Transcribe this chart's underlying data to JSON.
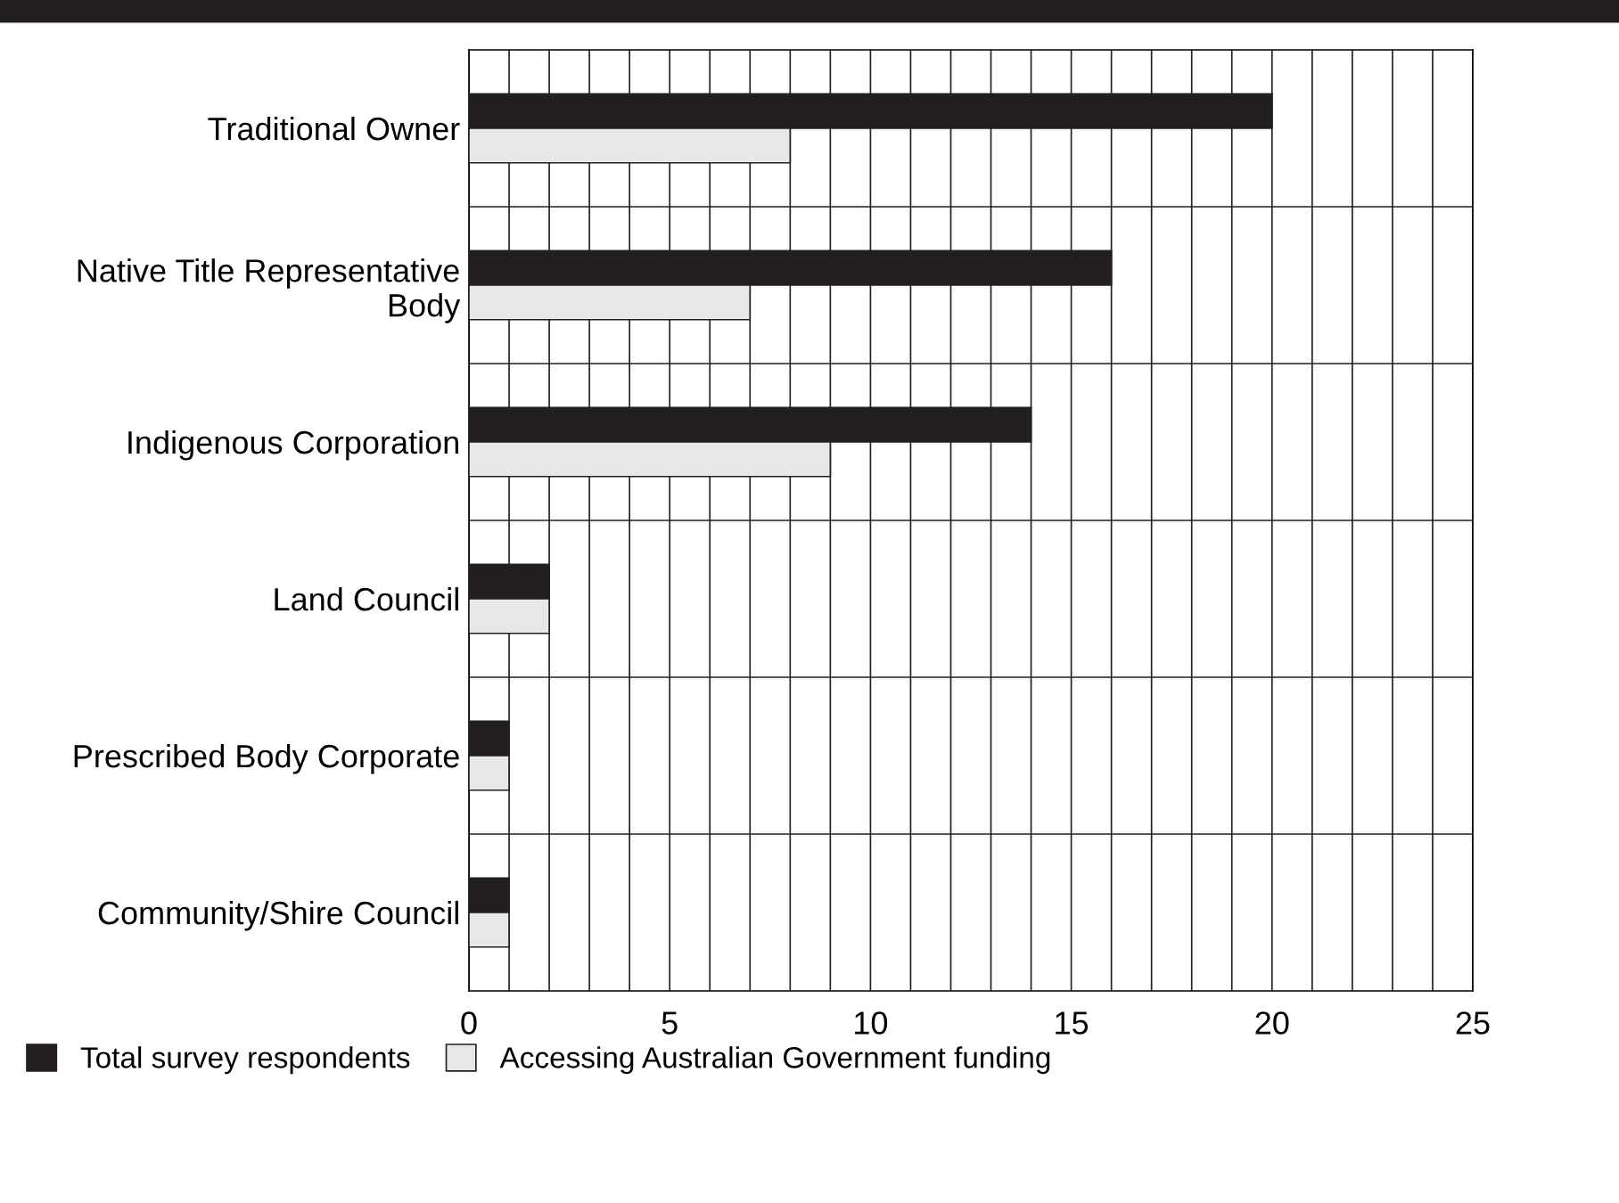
{
  "chart_data": {
    "type": "bar",
    "orientation": "horizontal",
    "categories": [
      "Traditional Owner",
      "Native Title Representative\nBody",
      "Indigenous Corporation",
      "Land Council",
      "Prescribed Body Corporate",
      "Community/Shire Council"
    ],
    "series": [
      {
        "name": "Total survey respondents",
        "color": "#231f20",
        "values": [
          20,
          16,
          14,
          2,
          1,
          1
        ]
      },
      {
        "name": "Accessing Australian Government funding",
        "color": "#e6e7e8",
        "values": [
          8,
          7,
          9,
          2,
          1,
          1
        ]
      }
    ],
    "xlim": [
      0,
      25
    ],
    "xticks": [
      0,
      {
        "value": 1,
        "label": null
      },
      {
        "value": 2,
        "label": null
      },
      {
        "value": 3,
        "label": null
      },
      {
        "value": 4,
        "label": null
      },
      5,
      {
        "value": 6,
        "label": null
      },
      {
        "value": 7,
        "label": null
      },
      {
        "value": 8,
        "label": null
      },
      {
        "value": 9,
        "label": null
      },
      10,
      {
        "value": 11,
        "label": null
      },
      {
        "value": 12,
        "label": null
      },
      {
        "value": 13,
        "label": null
      },
      {
        "value": 14,
        "label": null
      },
      15,
      {
        "value": 16,
        "label": null
      },
      {
        "value": 17,
        "label": null
      },
      {
        "value": 18,
        "label": null
      },
      {
        "value": 19,
        "label": null
      },
      20,
      {
        "value": 21,
        "label": null
      },
      {
        "value": 22,
        "label": null
      },
      {
        "value": 23,
        "label": null
      },
      {
        "value": 24,
        "label": null
      },
      25
    ],
    "grid": true,
    "legend": "bottom"
  }
}
